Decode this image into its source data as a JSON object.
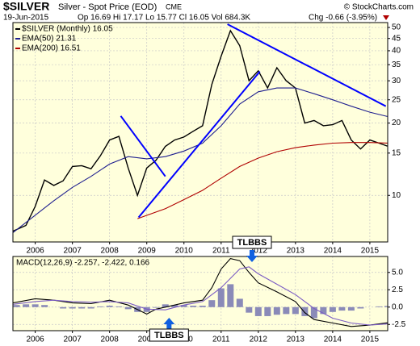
{
  "header": {
    "title": "$SILVER",
    "subtitle": "Silver - Spot Price (EOD)",
    "exchange": "CME",
    "copyright": "© StockCharts.com",
    "date": "19-Jun-2015",
    "quote": "Op 16.69 Hi 17.17 Lo 15.77 Cl 16.05 Vol 684.3K",
    "change": "Chg -0.66 (-3.95%)"
  },
  "chart_data": [
    {
      "type": "line",
      "log_scale": true,
      "grid": true,
      "legend": "top-left",
      "xlim": [
        2005.4,
        2015.48
      ],
      "xticks": [
        2006,
        2007,
        2008,
        2009,
        2010,
        2011,
        2012,
        2013,
        2014,
        2015
      ],
      "ylim": [
        6.4,
        52.4
      ],
      "yticks": [
        10,
        15,
        20,
        25,
        30,
        35,
        40,
        45,
        50
      ],
      "series": [
        {
          "name": "$SILVER (Monthly) 16.05",
          "color": "#000000",
          "x": [
            2005.4,
            2005.75,
            2006.0,
            2006.25,
            2006.5,
            2006.75,
            2007.0,
            2007.25,
            2007.5,
            2007.75,
            2008.0,
            2008.25,
            2008.5,
            2008.75,
            2009.0,
            2009.25,
            2009.5,
            2009.75,
            2010.0,
            2010.25,
            2010.5,
            2010.75,
            2011.0,
            2011.25,
            2011.5,
            2011.75,
            2012.0,
            2012.25,
            2012.5,
            2012.75,
            2013.0,
            2013.25,
            2013.5,
            2013.75,
            2014.0,
            2014.25,
            2014.5,
            2014.75,
            2015.0,
            2015.25,
            2015.47
          ],
          "values": [
            7.1,
            7.5,
            9.0,
            11.6,
            11.0,
            11.5,
            13.2,
            13.3,
            12.9,
            14.6,
            17.0,
            17.6,
            13.0,
            10.0,
            13.0,
            14.0,
            16.0,
            17.0,
            17.5,
            18.5,
            19.5,
            29.0,
            38.0,
            48.5,
            42.0,
            30.0,
            33.0,
            28.0,
            34.0,
            30.0,
            28.0,
            20.0,
            20.5,
            19.5,
            19.7,
            20.5,
            17.0,
            15.6,
            17.0,
            16.5,
            16.05
          ]
        },
        {
          "name": "EMA(50) 21.31",
          "color": "#1f1f8f",
          "x": [
            2005.4,
            2006.5,
            2007.0,
            2007.5,
            2008.0,
            2008.5,
            2009.0,
            2009.5,
            2010.0,
            2010.5,
            2011.0,
            2011.5,
            2012.0,
            2012.5,
            2013.0,
            2013.5,
            2014.0,
            2014.5,
            2015.0,
            2015.47
          ],
          "values": [
            7.0,
            9.5,
            10.8,
            12.0,
            13.5,
            14.5,
            14.2,
            14.5,
            15.3,
            16.5,
            19.5,
            24.0,
            27.0,
            28.0,
            28.0,
            26.5,
            25.0,
            23.5,
            22.2,
            21.31
          ]
        },
        {
          "name": "EMA(200) 16.51",
          "color": "#b00000",
          "x": [
            2008.75,
            2009.5,
            2010.0,
            2010.5,
            2011.0,
            2011.5,
            2012.0,
            2012.5,
            2013.0,
            2013.5,
            2014.0,
            2014.5,
            2015.0,
            2015.47
          ],
          "values": [
            8.0,
            8.8,
            9.6,
            10.5,
            11.8,
            13.2,
            14.3,
            15.2,
            15.8,
            16.2,
            16.5,
            16.6,
            16.6,
            16.51
          ]
        }
      ],
      "trendlines": [
        {
          "color": "#0000ff",
          "x": [
            2008.3,
            2009.5
          ],
          "values": [
            21.4,
            12.0
          ]
        },
        {
          "color": "#0000ff",
          "x": [
            2008.78,
            2012.04
          ],
          "values": [
            8.1,
            32.8
          ]
        },
        {
          "color": "#0000ff",
          "x": [
            2011.17,
            2015.43
          ],
          "values": [
            51.6,
            23.5
          ]
        }
      ]
    },
    {
      "type": "line",
      "title": "MACD(12,26,9) -2.257, -2.422, 0.166",
      "grid": true,
      "xlim": [
        2005.4,
        2015.48
      ],
      "xticks": [
        2006,
        2007,
        2008,
        2009,
        2010,
        2011,
        2012,
        2013,
        2014,
        2015
      ],
      "ylim": [
        -3.4,
        7.3
      ],
      "yticks": [
        {
          "value": 5,
          "label": "5.0"
        },
        2.5,
        {
          "value": 0,
          "label": "0.0"
        },
        -2.5
      ],
      "series": [
        {
          "name": "MACD",
          "type": "bar",
          "color": "#8a8ab8",
          "x": [
            2005.5,
            2005.75,
            2006.0,
            2006.25,
            2006.5,
            2006.75,
            2007.0,
            2007.25,
            2007.5,
            2007.75,
            2008.0,
            2008.25,
            2008.5,
            2008.75,
            2009.0,
            2009.25,
            2009.5,
            2009.75,
            2010.0,
            2010.25,
            2010.5,
            2010.75,
            2011.0,
            2011.25,
            2011.5,
            2011.75,
            2012.0,
            2012.25,
            2012.5,
            2012.75,
            2013.0,
            2013.25,
            2013.5,
            2013.75,
            2014.0,
            2014.25,
            2014.5,
            2014.75,
            2015.0,
            2015.25,
            2015.48
          ],
          "values": [
            0.3,
            0.4,
            0.4,
            0.3,
            0,
            -0.2,
            -0.2,
            -0.2,
            -0.2,
            0.1,
            0.2,
            0.1,
            -0.3,
            -0.7,
            -0.7,
            -0.1,
            0.4,
            0.3,
            0.3,
            0.2,
            0.2,
            1.0,
            2.7,
            3.3,
            1.2,
            -0.8,
            -1.3,
            -1.3,
            -1.1,
            -1.0,
            -1.0,
            -1.3,
            -1.6,
            -1.0,
            -0.7,
            -0.5,
            -0.5,
            -0.2,
            0,
            0.1,
            0.166
          ]
        },
        {
          "name": "MACD line",
          "color": "#000000",
          "x": [
            2005.4,
            2006.0,
            2006.5,
            2007.0,
            2007.5,
            2008.0,
            2008.5,
            2009.0,
            2009.25,
            2009.5,
            2010.0,
            2010.5,
            2010.75,
            2011.0,
            2011.25,
            2011.5,
            2011.75,
            2012.0,
            2012.5,
            2013.0,
            2013.25,
            2013.5,
            2014.0,
            2014.5,
            2015.0,
            2015.48
          ],
          "values": [
            0.6,
            1.2,
            1.0,
            0.6,
            0.5,
            1.0,
            0.3,
            -1.0,
            -0.3,
            0.0,
            0.6,
            1.0,
            2.8,
            5.5,
            7.0,
            6.7,
            5.0,
            3.5,
            2.2,
            0.8,
            -0.8,
            -1.8,
            -2.3,
            -2.8,
            -2.6,
            -2.257
          ]
        },
        {
          "name": "Signal",
          "color": "#7b5cc4",
          "x": [
            2005.4,
            2006.0,
            2006.5,
            2007.0,
            2007.5,
            2008.0,
            2008.5,
            2009.0,
            2009.5,
            2010.0,
            2010.5,
            2011.0,
            2011.5,
            2011.75,
            2012.0,
            2012.5,
            2013.0,
            2013.5,
            2014.0,
            2014.5,
            2015.0,
            2015.48
          ],
          "values": [
            0.4,
            0.8,
            1.0,
            0.8,
            0.7,
            0.8,
            0.6,
            -0.3,
            -0.4,
            0.3,
            0.8,
            2.8,
            5.5,
            5.8,
            4.8,
            3.3,
            1.8,
            -0.2,
            -1.6,
            -2.3,
            -2.6,
            -2.422
          ]
        }
      ],
      "annotations": [
        {
          "text": "TLBBS",
          "x": 2011.83,
          "direction": "down"
        },
        {
          "text": "TLBBS",
          "x": 2009.6,
          "direction": "up"
        }
      ]
    }
  ]
}
